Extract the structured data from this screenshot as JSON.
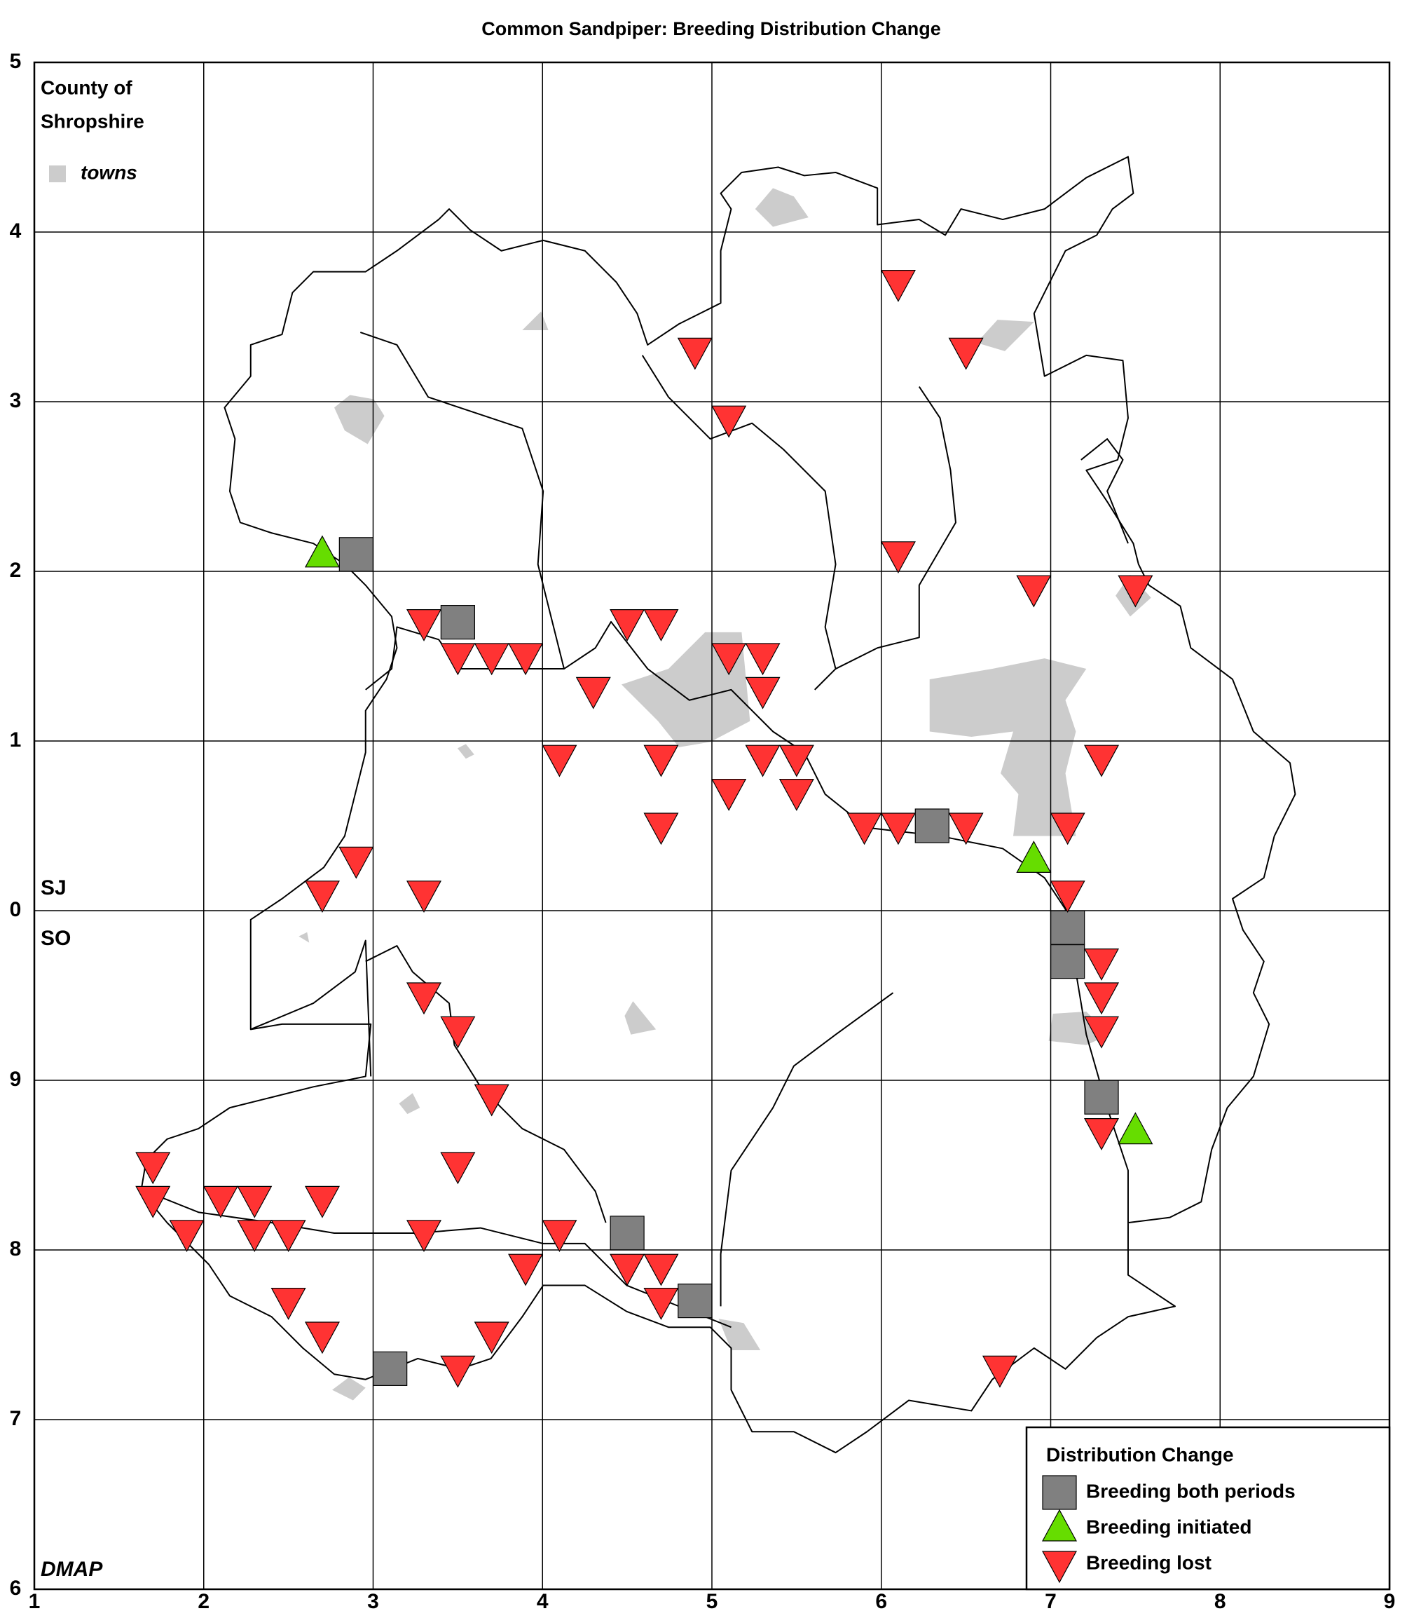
{
  "chart_data": {
    "type": "scatter",
    "title": "Common Sandpiper: Breeding Distribution Change",
    "county_label": [
      "County of",
      "Shropshire"
    ],
    "towns_label": "towns",
    "towns_color": "#cccccc",
    "zone_labels": [
      "SJ",
      "SO"
    ],
    "credit": "DMAP",
    "legend_title": "Distribution Change",
    "legend": "lower right",
    "grid": true,
    "xlim": [
      1,
      9
    ],
    "xticks": [
      1,
      2,
      3,
      4,
      5,
      6,
      7,
      8,
      9
    ],
    "ylim": [
      -4,
      5
    ],
    "yticks": [
      {
        "value": -4,
        "label": "6"
      },
      {
        "value": -3,
        "label": "7"
      },
      {
        "value": -2,
        "label": "8"
      },
      {
        "value": -1,
        "label": "9"
      },
      0,
      1,
      2,
      3,
      4,
      5
    ],
    "series": [
      {
        "name": "Breeding both periods",
        "color": "#808080",
        "marker": "square",
        "x": [
          2.9,
          3.5,
          6.3,
          7.1,
          7.1,
          7.3,
          4.5,
          4.9,
          3.1
        ],
        "y": [
          2.1,
          1.7,
          0.5,
          -0.1,
          -0.3,
          -1.1,
          -1.9,
          -2.3,
          -2.7
        ]
      },
      {
        "name": "Breeding initiated",
        "color": "#66dd00",
        "marker": "triangle-up",
        "x": [
          2.7,
          6.9,
          7.5
        ],
        "y": [
          2.1,
          0.3,
          -1.3
        ]
      },
      {
        "name": "Breeding lost",
        "color": "#ff3333",
        "marker": "triangle-down",
        "x": [
          6.1,
          4.9,
          6.5,
          5.1,
          6.1,
          6.9,
          7.5,
          3.3,
          4.5,
          4.7,
          3.5,
          3.7,
          3.9,
          5.1,
          5.3,
          4.3,
          5.3,
          4.1,
          4.7,
          5.3,
          5.5,
          7.3,
          5.1,
          5.5,
          4.7,
          5.9,
          6.1,
          6.5,
          7.1,
          2.9,
          2.7,
          3.3,
          7.1,
          7.3,
          3.3,
          7.3,
          3.5,
          7.3,
          3.7,
          7.3,
          1.7,
          3.5,
          1.7,
          2.1,
          2.3,
          2.7,
          1.9,
          2.3,
          2.5,
          3.3,
          4.1,
          3.9,
          4.5,
          4.7,
          4.7,
          2.5,
          2.7,
          3.7,
          3.5,
          6.7
        ],
        "y": [
          3.7,
          3.3,
          3.3,
          2.9,
          2.1,
          1.9,
          1.9,
          1.7,
          1.7,
          1.7,
          1.5,
          1.5,
          1.5,
          1.5,
          1.5,
          1.3,
          1.3,
          0.9,
          0.9,
          0.9,
          0.9,
          0.9,
          0.7,
          0.7,
          0.5,
          0.5,
          0.5,
          0.5,
          0.5,
          0.3,
          0.1,
          0.1,
          0.1,
          -0.3,
          -0.5,
          -0.5,
          -0.7,
          -0.7,
          -1.1,
          -1.3,
          -1.5,
          -1.5,
          -1.7,
          -1.7,
          -1.7,
          -1.7,
          -1.9,
          -1.9,
          -1.9,
          -1.9,
          -1.9,
          -2.1,
          -2.1,
          -2.1,
          -2.3,
          -2.3,
          -2.5,
          -2.5,
          -2.7,
          -2.7
        ]
      }
    ]
  }
}
